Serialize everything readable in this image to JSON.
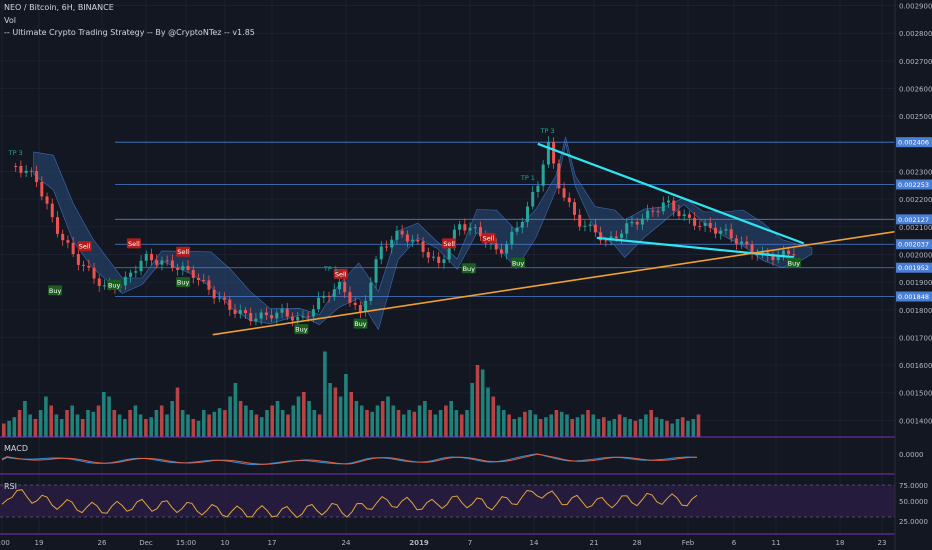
{
  "header": {
    "symbol_line": "NEO / Bitcoin, 6H, BINANCE",
    "vol_label": "Vol",
    "strategy_label": "-- Ultimate Crypto Trading Strategy -- By @CryptoNTez -- v1.85"
  },
  "panes": {
    "macd_label": "MACD",
    "rsi_label": "RSI"
  },
  "colors": {
    "background": "#131722",
    "up_candle": "#26a69a",
    "down_candle": "#ef5350",
    "cloud": "#2a4a7a",
    "trend_cyan": "#2ee6f0",
    "trend_orange": "#f0a030",
    "hline": "#4a7fd4",
    "rsi_line": "#e0a43a",
    "macd_line": "#2f8cd8",
    "signal_line": "#e06040",
    "buy_label": "#1b5e20",
    "sell_label": "#b71c1c",
    "pane_border": "#7b2fbe"
  },
  "chart_data": {
    "type": "line",
    "title": "NEO / Bitcoin, 6H, BINANCE",
    "y_axis": {
      "ticks": [
        "0.002900",
        "0.002800",
        "0.002700",
        "0.002600",
        "0.002500",
        "0.002300",
        "0.002200",
        "0.002100",
        "0.002000",
        "0.001900",
        "0.001800",
        "0.001700",
        "0.001600",
        "0.001500",
        "0.001400"
      ],
      "ylim": [
        0.00134,
        0.00292
      ]
    },
    "x_axis": {
      "ticks": [
        "2:00",
        "19",
        "26",
        "Dec",
        "15:00",
        "10",
        "17",
        "24",
        "2019",
        "7",
        "14",
        "21",
        "28",
        "Feb",
        "6",
        "11",
        "18",
        "23"
      ]
    },
    "price_levels": [
      {
        "label": "0.002406",
        "value": 0.002406
      },
      {
        "label": "0.002253",
        "value": 0.002253
      },
      {
        "label": "0.002127",
        "value": 0.002127
      },
      {
        "label": "0.002037",
        "value": 0.002037
      },
      {
        "label": "0.001952",
        "value": 0.001952
      },
      {
        "label": "0.001848",
        "value": 0.001848
      }
    ],
    "price_path": [
      {
        "x": "Nov 15",
        "y": 0.00232
      },
      {
        "x": "Nov 17",
        "y": 0.00228
      },
      {
        "x": "Nov 19",
        "y": 0.0021
      },
      {
        "x": "Nov 21",
        "y": 0.00199
      },
      {
        "x": "Nov 24",
        "y": 0.00188
      },
      {
        "x": "Nov 26",
        "y": 0.0019
      },
      {
        "x": "Nov 28",
        "y": 0.00199
      },
      {
        "x": "Dec 1",
        "y": 0.00196
      },
      {
        "x": "Dec 3",
        "y": 0.00193
      },
      {
        "x": "Dec 5",
        "y": 0.00186
      },
      {
        "x": "Dec 7",
        "y": 0.0018
      },
      {
        "x": "Dec 9",
        "y": 0.00177
      },
      {
        "x": "Dec 12",
        "y": 0.00179
      },
      {
        "x": "Dec 14",
        "y": 0.00176
      },
      {
        "x": "Dec 16",
        "y": 0.00184
      },
      {
        "x": "Dec 18",
        "y": 0.00189
      },
      {
        "x": "Dec 20",
        "y": 0.00178
      },
      {
        "x": "Dec 22",
        "y": 0.00202
      },
      {
        "x": "Dec 24",
        "y": 0.00208
      },
      {
        "x": "Dec 26",
        "y": 0.00203
      },
      {
        "x": "Dec 28",
        "y": 0.00196
      },
      {
        "x": "Dec 30",
        "y": 0.00211
      },
      {
        "x": "Jan 1",
        "y": 0.00208
      },
      {
        "x": "Jan 3",
        "y": 0.002
      },
      {
        "x": "Jan 5",
        "y": 0.0021
      },
      {
        "x": "Jan 7",
        "y": 0.00225
      },
      {
        "x": "Jan 8",
        "y": 0.00241
      },
      {
        "x": "Jan 9",
        "y": 0.00226
      },
      {
        "x": "Jan 11",
        "y": 0.00212
      },
      {
        "x": "Jan 13",
        "y": 0.00208
      },
      {
        "x": "Jan 14",
        "y": 0.00204
      },
      {
        "x": "Jan 16",
        "y": 0.0021
      },
      {
        "x": "Jan 18",
        "y": 0.00214
      },
      {
        "x": "Jan 20",
        "y": 0.00219
      },
      {
        "x": "Jan 22",
        "y": 0.00213
      },
      {
        "x": "Jan 24",
        "y": 0.0021
      },
      {
        "x": "Jan 26",
        "y": 0.00208
      },
      {
        "x": "Jan 28",
        "y": 0.00203
      },
      {
        "x": "Jan 30",
        "y": 0.00199
      },
      {
        "x": "Feb 1",
        "y": 0.002
      },
      {
        "x": "Feb 2",
        "y": 0.00201
      }
    ],
    "trendlines": [
      {
        "name": "upper-resistance",
        "from": {
          "x": "Jan 7",
          "y": 0.0024
        },
        "to": {
          "x": "Feb 3",
          "y": 0.00204
        }
      },
      {
        "name": "lower-support",
        "from": {
          "x": "Jan 13",
          "y": 0.00206
        },
        "to": {
          "x": "Feb 2",
          "y": 0.00199
        }
      },
      {
        "name": "long-support",
        "from": {
          "x": "Dec 5",
          "y": 0.00171
        },
        "to": {
          "x": "Feb 23",
          "y": 0.00214
        }
      }
    ],
    "signals": [
      {
        "label": "Buy",
        "kind": "buy",
        "x": "Nov 19",
        "y": 0.00187
      },
      {
        "label": "Buy",
        "kind": "buy",
        "x": "Nov 25",
        "y": 0.00189
      },
      {
        "label": "Sell",
        "kind": "sell",
        "x": "Nov 22",
        "y": 0.00203
      },
      {
        "label": "Sell",
        "kind": "sell",
        "x": "Nov 27",
        "y": 0.00204
      },
      {
        "label": "Sell",
        "kind": "sell",
        "x": "Dec 2",
        "y": 0.00201
      },
      {
        "label": "Buy",
        "kind": "buy",
        "x": "Dec 2",
        "y": 0.0019
      },
      {
        "label": "Buy",
        "kind": "buy",
        "x": "Dec 14",
        "y": 0.00173
      },
      {
        "label": "Sell",
        "kind": "sell",
        "x": "Dec 18",
        "y": 0.00193
      },
      {
        "label": "Buy",
        "kind": "buy",
        "x": "Dec 20",
        "y": 0.00175
      },
      {
        "label": "Sell",
        "kind": "sell",
        "x": "Dec 29",
        "y": 0.00204
      },
      {
        "label": "Buy",
        "kind": "buy",
        "x": "Dec 31",
        "y": 0.00195
      },
      {
        "label": "Sell",
        "kind": "sell",
        "x": "Jan 2",
        "y": 0.00206
      },
      {
        "label": "Buy",
        "kind": "buy",
        "x": "Jan 5",
        "y": 0.00197
      },
      {
        "label": "Buy",
        "kind": "buy",
        "x": "Feb 2",
        "y": 0.00197
      }
    ],
    "tp_labels": [
      {
        "label": "TP 3",
        "x": "Nov 15",
        "y": 0.00236
      },
      {
        "label": "TP 3",
        "x": "Jan 8",
        "y": 0.00244
      },
      {
        "label": "TP 1",
        "x": "Dec 17",
        "y": 0.00194
      },
      {
        "label": "TP 1",
        "x": "Jan 6",
        "y": 0.00227
      }
    ],
    "volume": {
      "peak_dates": [
        "Dec 22",
        "Dec 23",
        "Jan 8",
        "Jan 9"
      ],
      "relative_levels": [
        0.15,
        0.18,
        0.22,
        0.3,
        0.4,
        0.25,
        0.2,
        0.3,
        0.45,
        0.35,
        0.25,
        0.2,
        0.3,
        0.35,
        0.25,
        0.2,
        0.3,
        0.28,
        0.35,
        0.5,
        0.45,
        0.3,
        0.25,
        0.2,
        0.3,
        0.35,
        0.25,
        0.2,
        0.22,
        0.3,
        0.35,
        0.25,
        0.4,
        0.55,
        0.3,
        0.25,
        0.2,
        0.18,
        0.3,
        0.25,
        0.28,
        0.32,
        0.3,
        0.45,
        0.6,
        0.4,
        0.35,
        0.3,
        0.25,
        0.22,
        0.3,
        0.35,
        0.4,
        0.3,
        0.25,
        0.35,
        0.45,
        0.5,
        0.4,
        0.3,
        0.25,
        0.95,
        0.6,
        0.55,
        0.45,
        0.7,
        0.5,
        0.4,
        0.35,
        0.3,
        0.28,
        0.35,
        0.4,
        0.45,
        0.35,
        0.3,
        0.25,
        0.3,
        0.28,
        0.35,
        0.4,
        0.3,
        0.25,
        0.3,
        0.35,
        0.4,
        0.3,
        0.25,
        0.3,
        0.6,
        0.8,
        0.75,
        0.55,
        0.45,
        0.35,
        0.3,
        0.25,
        0.2,
        0.22,
        0.28,
        0.3,
        0.25,
        0.2,
        0.22,
        0.25,
        0.3,
        0.28,
        0.25,
        0.2,
        0.22,
        0.25,
        0.3,
        0.25,
        0.2,
        0.22,
        0.18,
        0.2,
        0.25,
        0.22,
        0.2,
        0.18,
        0.2,
        0.25,
        0.3,
        0.22,
        0.2,
        0.18,
        0.15,
        0.2,
        0.22,
        0.18,
        0.2,
        0.25
      ]
    },
    "macd": {
      "tick": "0.0000"
    },
    "rsi": {
      "ticks": [
        "75.0000",
        "50.0000",
        "25.0000"
      ],
      "levels": [
        70,
        30
      ]
    }
  }
}
